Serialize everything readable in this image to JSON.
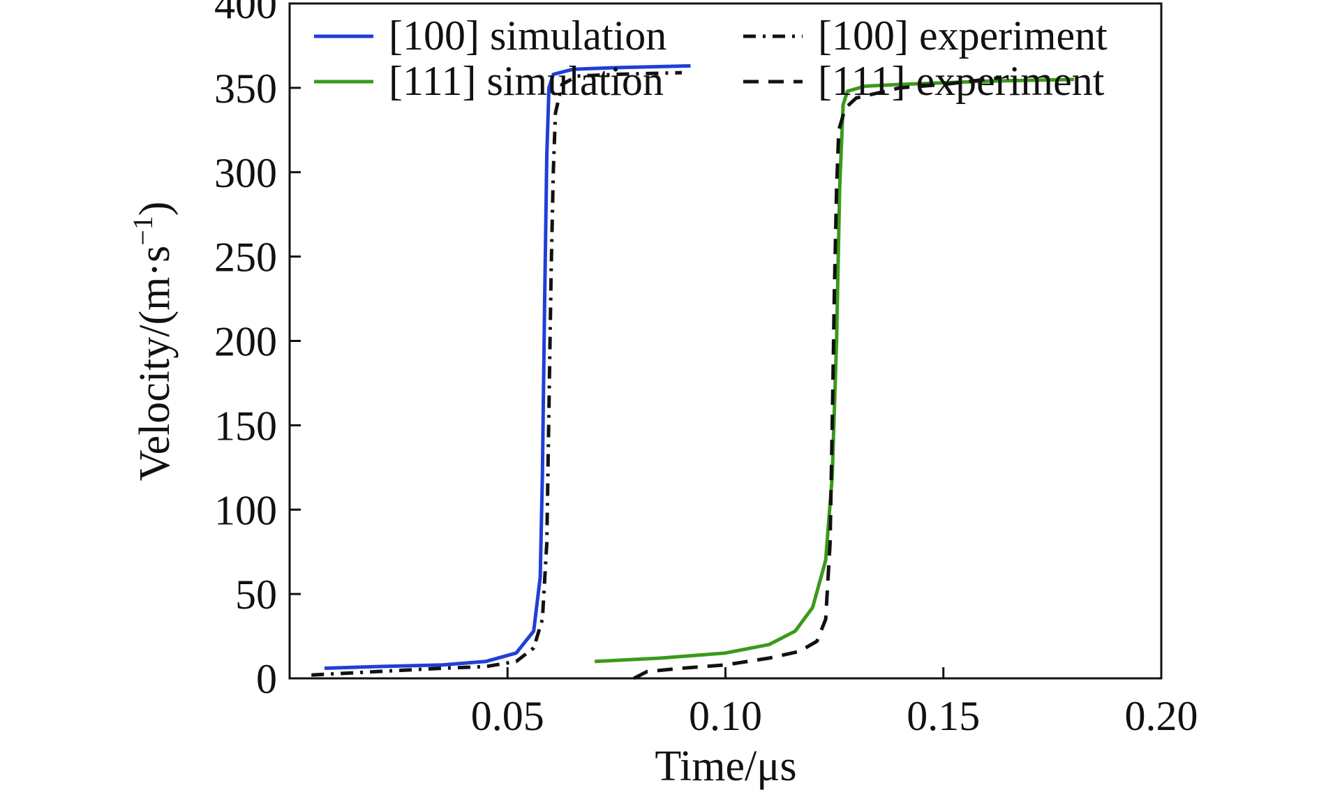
{
  "chart_data": {
    "type": "line",
    "title": "",
    "xlabel": "Time/μs",
    "ylabel_main": "Velocity/(m·s",
    "ylabel_sup": "−1",
    "ylabel_close": ")",
    "xlim": [
      0.0,
      0.2
    ],
    "ylim": [
      0,
      400
    ],
    "xticks": [
      0.05,
      0.1,
      0.15,
      0.2
    ],
    "xtick_labels": [
      "0.05",
      "0.10",
      "0.15",
      "0.20"
    ],
    "yticks": [
      0,
      50,
      100,
      150,
      200,
      250,
      300,
      350,
      400
    ],
    "ytick_labels": [
      "0",
      "50",
      "100",
      "150",
      "200",
      "250",
      "300",
      "350",
      "400"
    ],
    "grid": false,
    "legend_position": "top",
    "series": [
      {
        "name": "[100] simulation",
        "color": "#1f3fd6",
        "style": "solid",
        "points": [
          [
            0.008,
            6
          ],
          [
            0.02,
            7
          ],
          [
            0.035,
            8
          ],
          [
            0.045,
            10
          ],
          [
            0.052,
            15
          ],
          [
            0.056,
            28
          ],
          [
            0.0575,
            60
          ],
          [
            0.058,
            120
          ],
          [
            0.0585,
            220
          ],
          [
            0.059,
            310
          ],
          [
            0.0595,
            350
          ],
          [
            0.0605,
            358
          ],
          [
            0.065,
            361
          ],
          [
            0.075,
            362
          ],
          [
            0.092,
            363
          ]
        ]
      },
      {
        "name": "[111] simulation",
        "color": "#3a9a1a",
        "style": "solid",
        "points": [
          [
            0.07,
            10
          ],
          [
            0.085,
            12
          ],
          [
            0.1,
            15
          ],
          [
            0.11,
            20
          ],
          [
            0.116,
            28
          ],
          [
            0.12,
            42
          ],
          [
            0.123,
            70
          ],
          [
            0.1245,
            120
          ],
          [
            0.1255,
            200
          ],
          [
            0.1262,
            290
          ],
          [
            0.127,
            340
          ],
          [
            0.128,
            348
          ],
          [
            0.132,
            351
          ],
          [
            0.14,
            352
          ],
          [
            0.16,
            354
          ],
          [
            0.18,
            355
          ]
        ]
      },
      {
        "name": "[100] experiment",
        "color": "#111111",
        "style": "dashdot",
        "points": [
          [
            0.005,
            2
          ],
          [
            0.02,
            4
          ],
          [
            0.035,
            6
          ],
          [
            0.045,
            7
          ],
          [
            0.052,
            10
          ],
          [
            0.056,
            18
          ],
          [
            0.058,
            35
          ],
          [
            0.059,
            80
          ],
          [
            0.0595,
            160
          ],
          [
            0.06,
            240
          ],
          [
            0.0605,
            300
          ],
          [
            0.061,
            335
          ],
          [
            0.0625,
            352
          ],
          [
            0.066,
            357
          ],
          [
            0.075,
            358
          ],
          [
            0.09,
            359
          ]
        ]
      },
      {
        "name": "[111] experiment",
        "color": "#111111",
        "style": "dashed",
        "points": [
          [
            0.079,
            0
          ],
          [
            0.082,
            4
          ],
          [
            0.09,
            6
          ],
          [
            0.1,
            8
          ],
          [
            0.11,
            12
          ],
          [
            0.117,
            16
          ],
          [
            0.121,
            22
          ],
          [
            0.123,
            35
          ],
          [
            0.124,
            80
          ],
          [
            0.1245,
            150
          ],
          [
            0.125,
            230
          ],
          [
            0.1255,
            290
          ],
          [
            0.126,
            325
          ],
          [
            0.1275,
            338
          ],
          [
            0.13,
            344
          ],
          [
            0.14,
            350
          ],
          [
            0.15,
            352
          ],
          [
            0.163,
            356
          ]
        ]
      }
    ]
  }
}
